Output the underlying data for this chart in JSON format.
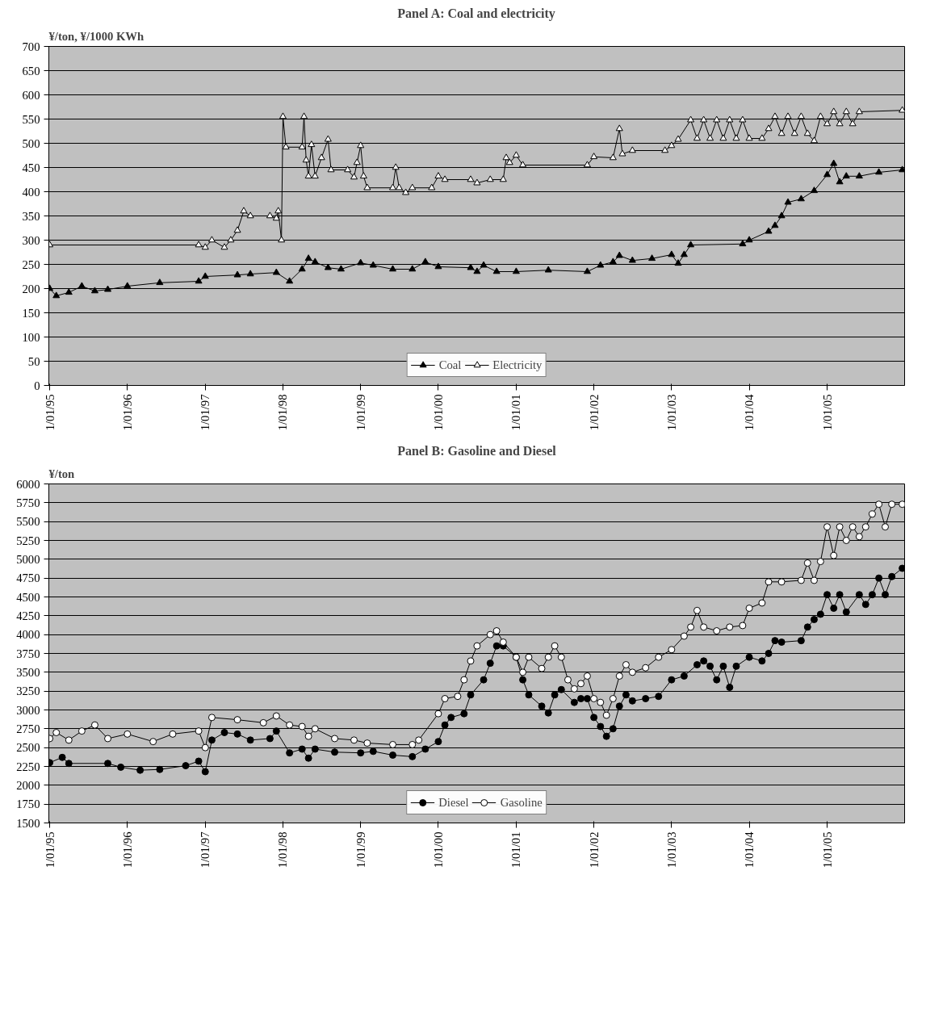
{
  "chart_data": [
    {
      "type": "line",
      "title": "Panel A: Coal and electricity",
      "ylabel": "¥/ton, ¥/1000 KWh",
      "marker": "triangle",
      "grid": "y",
      "legend": "bottom",
      "xlim": [
        "1994-12-28",
        "2005-12-31"
      ],
      "ylim": [
        0,
        700
      ],
      "yticks": [
        0,
        50,
        100,
        150,
        200,
        250,
        300,
        350,
        400,
        450,
        500,
        550,
        600,
        650,
        700
      ],
      "xticks": [
        {
          "value": "1995-01-01",
          "label": "1/01/95"
        },
        {
          "value": "1996-01-01",
          "label": "1/01/96"
        },
        {
          "value": "1997-01-01",
          "label": "1/01/97"
        },
        {
          "value": "1998-01-01",
          "label": "1/01/98"
        },
        {
          "value": "1999-01-01",
          "label": "1/01/99"
        },
        {
          "value": "2000-01-01",
          "label": "1/01/00"
        },
        {
          "value": "2001-01-01",
          "label": "1/01/01"
        },
        {
          "value": "2002-01-01",
          "label": "1/01/02"
        },
        {
          "value": "2003-01-01",
          "label": "1/01/03"
        },
        {
          "value": "2004-01-01",
          "label": "1/01/04"
        },
        {
          "value": "2005-01-01",
          "label": "1/01/05"
        }
      ],
      "series": [
        {
          "name": "Coal",
          "color": "#000000",
          "x": [
            "1995-01-01",
            "1995-02-01",
            "1995-04-01",
            "1995-06-01",
            "1995-08-01",
            "1995-10-01",
            "1996-01-01",
            "1996-06-01",
            "1996-12-01",
            "1997-01-01",
            "1997-06-01",
            "1997-08-01",
            "1997-12-01",
            "1998-02-01",
            "1998-04-01",
            "1998-05-01",
            "1998-06-01",
            "1998-08-01",
            "1998-10-01",
            "1999-01-01",
            "1999-03-01",
            "1999-06-01",
            "1999-09-01",
            "1999-11-01",
            "2000-01-01",
            "2000-06-01",
            "2000-07-01",
            "2000-08-01",
            "2000-10-01",
            "2001-01-01",
            "2001-06-01",
            "2001-12-01",
            "2002-02-01",
            "2002-04-01",
            "2002-05-01",
            "2002-07-01",
            "2002-10-01",
            "2003-01-01",
            "2003-02-01",
            "2003-03-01",
            "2003-04-01",
            "2003-12-01",
            "2004-01-01",
            "2004-04-01",
            "2004-05-01",
            "2004-06-01",
            "2004-07-01",
            "2004-09-01",
            "2004-11-01",
            "2005-01-01",
            "2005-02-01",
            "2005-03-01",
            "2005-04-01",
            "2005-06-01",
            "2005-09-01",
            "2005-12-20"
          ],
          "values": [
            200,
            185,
            192,
            205,
            195,
            198,
            205,
            212,
            215,
            225,
            228,
            230,
            233,
            215,
            240,
            262,
            255,
            243,
            240,
            253,
            248,
            240,
            240,
            255,
            245,
            243,
            235,
            248,
            235,
            235,
            238,
            235,
            248,
            255,
            268,
            258,
            262,
            270,
            252,
            270,
            290,
            292,
            300,
            318,
            330,
            350,
            378,
            385,
            402,
            435,
            458,
            420,
            432,
            432,
            440,
            445
          ]
        },
        {
          "name": "Electricity",
          "color": "#ffffff",
          "x": [
            "1995-01-01",
            "1996-12-01",
            "1997-01-01",
            "1997-02-01",
            "1997-04-01",
            "1997-05-01",
            "1997-06-01",
            "1997-07-01",
            "1997-08-01",
            "1997-11-01",
            "1997-12-01",
            "1997-12-10",
            "1997-12-25",
            "1998-01-01",
            "1998-01-15",
            "1998-04-01",
            "1998-04-10",
            "1998-04-20",
            "1998-05-01",
            "1998-05-15",
            "1998-06-01",
            "1998-07-01",
            "1998-08-01",
            "1998-08-15",
            "1998-11-01",
            "1998-12-01",
            "1998-12-15",
            "1999-01-01",
            "1999-01-15",
            "1999-02-01",
            "1999-06-01",
            "1999-06-15",
            "1999-07-01",
            "1999-08-01",
            "1999-09-01",
            "1999-12-01",
            "2000-01-01",
            "2000-02-01",
            "2000-06-01",
            "2000-07-01",
            "2000-09-01",
            "2000-11-01",
            "2000-11-15",
            "2000-12-01",
            "2001-01-01",
            "2001-02-01",
            "2001-12-01",
            "2002-01-01",
            "2002-04-01",
            "2002-05-01",
            "2002-05-15",
            "2002-07-01",
            "2002-12-01",
            "2003-01-01",
            "2003-02-01",
            "2003-04-01",
            "2003-05-01",
            "2003-06-01",
            "2003-07-01",
            "2003-08-01",
            "2003-09-01",
            "2003-10-01",
            "2003-11-01",
            "2003-12-01",
            "2004-01-01",
            "2004-03-01",
            "2004-04-01",
            "2004-05-01",
            "2004-06-01",
            "2004-07-01",
            "2004-08-01",
            "2004-09-01",
            "2004-10-01",
            "2004-11-01",
            "2004-12-01",
            "2005-01-01",
            "2005-02-01",
            "2005-03-01",
            "2005-04-01",
            "2005-05-01",
            "2005-06-01",
            "2005-12-20"
          ],
          "values": [
            290,
            290,
            285,
            300,
            285,
            300,
            320,
            360,
            350,
            350,
            345,
            360,
            300,
            555,
            492,
            492,
            555,
            465,
            432,
            497,
            432,
            470,
            508,
            445,
            445,
            430,
            460,
            495,
            432,
            408,
            408,
            450,
            408,
            398,
            408,
            408,
            432,
            425,
            425,
            418,
            425,
            425,
            470,
            460,
            475,
            455,
            455,
            472,
            470,
            530,
            478,
            485,
            485,
            495,
            508,
            548,
            510,
            548,
            510,
            548,
            510,
            548,
            510,
            548,
            510,
            510,
            530,
            555,
            520,
            555,
            520,
            555,
            520,
            505,
            555,
            540,
            565,
            540,
            565,
            540,
            565,
            568
          ]
        }
      ]
    },
    {
      "type": "line",
      "title": "Panel B: Gasoline and Diesel",
      "ylabel": "¥/ton",
      "marker": "circle",
      "grid": "y",
      "legend": "bottom",
      "xlim": [
        "1994-12-28",
        "2005-12-31"
      ],
      "ylim": [
        1500,
        6000
      ],
      "yticks": [
        1500,
        1750,
        2000,
        2250,
        2500,
        2750,
        3000,
        3250,
        3500,
        3750,
        4000,
        4250,
        4500,
        4750,
        5000,
        5250,
        5500,
        5750,
        6000
      ],
      "xticks": [
        {
          "value": "1995-01-01",
          "label": "1/01/95"
        },
        {
          "value": "1996-01-01",
          "label": "1/01/96"
        },
        {
          "value": "1997-01-01",
          "label": "1/01/97"
        },
        {
          "value": "1998-01-01",
          "label": "1/01/98"
        },
        {
          "value": "1999-01-01",
          "label": "1/01/99"
        },
        {
          "value": "2000-01-01",
          "label": "1/01/00"
        },
        {
          "value": "2001-01-01",
          "label": "1/01/01"
        },
        {
          "value": "2002-01-01",
          "label": "1/01/02"
        },
        {
          "value": "2003-01-01",
          "label": "1/01/03"
        },
        {
          "value": "2004-01-01",
          "label": "1/01/04"
        },
        {
          "value": "2005-01-01",
          "label": "1/01/05"
        }
      ],
      "series": [
        {
          "name": "Diesel",
          "color": "#000000",
          "x": [
            "1995-01-01",
            "1995-03-01",
            "1995-04-01",
            "1995-10-01",
            "1995-12-01",
            "1996-03-01",
            "1996-06-01",
            "1996-10-01",
            "1996-12-01",
            "1997-01-01",
            "1997-02-01",
            "1997-04-01",
            "1997-06-01",
            "1997-08-01",
            "1997-11-01",
            "1997-12-01",
            "1998-02-01",
            "1998-04-01",
            "1998-05-01",
            "1998-06-01",
            "1998-09-01",
            "1999-01-01",
            "1999-03-01",
            "1999-06-01",
            "1999-09-01",
            "1999-11-01",
            "2000-01-01",
            "2000-02-01",
            "2000-03-01",
            "2000-05-01",
            "2000-06-01",
            "2000-08-01",
            "2000-09-01",
            "2000-10-01",
            "2000-11-01",
            "2001-01-01",
            "2001-02-01",
            "2001-03-01",
            "2001-05-01",
            "2001-06-01",
            "2001-07-01",
            "2001-08-01",
            "2001-10-01",
            "2001-11-01",
            "2001-12-01",
            "2002-01-01",
            "2002-02-01",
            "2002-03-01",
            "2002-04-01",
            "2002-05-01",
            "2002-06-01",
            "2002-07-01",
            "2002-09-01",
            "2002-11-01",
            "2003-01-01",
            "2003-03-01",
            "2003-05-01",
            "2003-06-01",
            "2003-07-01",
            "2003-08-01",
            "2003-09-01",
            "2003-10-01",
            "2003-11-01",
            "2004-01-01",
            "2004-03-01",
            "2004-04-01",
            "2004-05-01",
            "2004-06-01",
            "2004-09-01",
            "2004-10-01",
            "2004-11-01",
            "2004-12-01",
            "2005-01-01",
            "2005-02-01",
            "2005-03-01",
            "2005-04-01",
            "2005-06-01",
            "2005-07-01",
            "2005-08-01",
            "2005-09-01",
            "2005-10-01",
            "2005-11-01",
            "2005-12-20"
          ],
          "values": [
            2300,
            2370,
            2290,
            2290,
            2240,
            2200,
            2210,
            2260,
            2320,
            2180,
            2600,
            2700,
            2680,
            2600,
            2620,
            2720,
            2430,
            2480,
            2360,
            2480,
            2440,
            2430,
            2450,
            2400,
            2380,
            2480,
            2580,
            2800,
            2900,
            2950,
            3200,
            3400,
            3620,
            3850,
            3850,
            3700,
            3400,
            3200,
            3050,
            2960,
            3200,
            3270,
            3100,
            3150,
            3150,
            2900,
            2780,
            2650,
            2750,
            3050,
            3200,
            3120,
            3150,
            3180,
            3400,
            3450,
            3600,
            3650,
            3580,
            3400,
            3580,
            3300,
            3580,
            3700,
            3650,
            3750,
            3920,
            3900,
            3920,
            4100,
            4200,
            4270,
            4530,
            4350,
            4530,
            4300,
            4530,
            4400,
            4530,
            4750,
            4530,
            4770,
            4880
          ]
        },
        {
          "name": "Gasoline",
          "color": "#ffffff",
          "x": [
            "1995-01-01",
            "1995-02-01",
            "1995-04-01",
            "1995-06-01",
            "1995-08-01",
            "1995-10-01",
            "1996-01-01",
            "1996-05-01",
            "1996-08-01",
            "1996-12-01",
            "1997-01-01",
            "1997-02-01",
            "1997-06-01",
            "1997-10-01",
            "1997-12-01",
            "1998-02-01",
            "1998-04-01",
            "1998-05-01",
            "1998-06-01",
            "1998-09-01",
            "1998-12-01",
            "1999-02-01",
            "1999-06-01",
            "1999-09-01",
            "1999-10-01",
            "2000-01-01",
            "2000-02-01",
            "2000-04-01",
            "2000-05-01",
            "2000-06-01",
            "2000-07-01",
            "2000-09-01",
            "2000-10-01",
            "2000-11-01",
            "2001-01-01",
            "2001-02-01",
            "2001-03-01",
            "2001-05-01",
            "2001-06-01",
            "2001-07-01",
            "2001-08-01",
            "2001-09-01",
            "2001-10-01",
            "2001-11-01",
            "2001-12-01",
            "2002-01-01",
            "2002-02-01",
            "2002-03-01",
            "2002-04-01",
            "2002-05-01",
            "2002-06-01",
            "2002-07-01",
            "2002-09-01",
            "2002-11-01",
            "2003-01-01",
            "2003-03-01",
            "2003-04-01",
            "2003-05-01",
            "2003-06-01",
            "2003-08-01",
            "2003-10-01",
            "2003-12-01",
            "2004-01-01",
            "2004-03-01",
            "2004-04-01",
            "2004-06-01",
            "2004-09-01",
            "2004-10-01",
            "2004-11-01",
            "2004-12-01",
            "2005-01-01",
            "2005-02-01",
            "2005-03-01",
            "2005-04-01",
            "2005-05-01",
            "2005-06-01",
            "2005-07-01",
            "2005-08-01",
            "2005-09-01",
            "2005-10-01",
            "2005-11-01",
            "2005-12-20"
          ],
          "values": [
            2620,
            2700,
            2600,
            2720,
            2800,
            2620,
            2680,
            2580,
            2680,
            2720,
            2500,
            2900,
            2870,
            2830,
            2920,
            2800,
            2780,
            2650,
            2750,
            2620,
            2600,
            2560,
            2540,
            2540,
            2600,
            2950,
            3150,
            3180,
            3400,
            3650,
            3850,
            4000,
            4050,
            3900,
            3700,
            3500,
            3700,
            3550,
            3700,
            3850,
            3700,
            3400,
            3280,
            3350,
            3450,
            3150,
            3100,
            2930,
            3150,
            3450,
            3600,
            3500,
            3560,
            3700,
            3800,
            3980,
            4100,
            4320,
            4100,
            4050,
            4100,
            4120,
            4350,
            4420,
            4700,
            4700,
            4720,
            4950,
            4720,
            4970,
            5430,
            5050,
            5430,
            5250,
            5430,
            5300,
            5430,
            5600,
            5730,
            5430,
            5730,
            5730
          ]
        }
      ]
    }
  ]
}
